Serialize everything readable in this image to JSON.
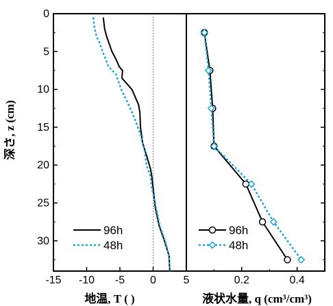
{
  "y_axis": {
    "label": "深さ, z (cm)",
    "ticks": [
      "0",
      "5",
      "10",
      "15",
      "20",
      "25",
      "30"
    ],
    "range": [
      0,
      34
    ]
  },
  "left_panel": {
    "xlabel": "地温, T (   )",
    "xticks": [
      "-15",
      "-10",
      "-5",
      "0",
      "5"
    ],
    "xlim": [
      -15,
      5
    ],
    "zero_line": true
  },
  "right_panel": {
    "xlabel": "液状水量, q (cm³/cm³)",
    "xticks": [
      "0.2",
      "0.4"
    ],
    "xlim": [
      0.0,
      0.5
    ]
  },
  "chart_data": [
    {
      "type": "line",
      "title": "",
      "xlabel": "地温, T (   )",
      "ylabel": "深さ, z (cm)",
      "xlim": [
        -15,
        5
      ],
      "ylim": [
        34,
        0
      ],
      "series": [
        {
          "name": "96h",
          "color": "#000000",
          "style": "solid",
          "x": [
            -7.5,
            -7.3,
            -7.0,
            -6.6,
            -6.2,
            -5.6,
            -5.1,
            -4.6,
            -4.7,
            -3.2,
            -2.2,
            -2.0,
            -1.9,
            -1.6,
            -0.9,
            -0.4,
            -0.2,
            0.0,
            0.3,
            0.9,
            1.7,
            2.4,
            2.5
          ],
          "y": [
            0.5,
            2.0,
            3.0,
            4.0,
            5.0,
            6.0,
            7.0,
            7.5,
            8.5,
            10.0,
            12.0,
            13.0,
            15.0,
            17.0,
            19.0,
            20.5,
            21.5,
            23.0,
            25.5,
            28.0,
            30.0,
            32.0,
            34.0
          ]
        },
        {
          "name": "48h",
          "color": "#1aa3d9",
          "style": "dotted",
          "x": [
            -9.0,
            -8.8,
            -8.5,
            -8.0,
            -7.6,
            -6.7,
            -5.6,
            -4.8,
            -3.7,
            -2.7,
            -1.9,
            -1.3,
            -1.0,
            -0.4,
            -0.2,
            0.3,
            1.0,
            1.8,
            2.4,
            2.5
          ],
          "y": [
            0.5,
            2.0,
            3.0,
            4.0,
            5.0,
            7.0,
            8.0,
            10.0,
            12.0,
            14.0,
            16.0,
            18.0,
            20.0,
            21.5,
            23.0,
            25.0,
            28.0,
            30.0,
            32.0,
            34.0
          ]
        }
      ],
      "legend": {
        "position": "bottom-left",
        "entries": [
          "96h",
          "48h"
        ]
      }
    },
    {
      "type": "line",
      "title": "",
      "xlabel": "液状水量, q (cm³/cm³)",
      "ylabel": "",
      "xlim": [
        0.0,
        0.5
      ],
      "ylim": [
        34,
        0
      ],
      "series": [
        {
          "name": "96h",
          "color": "#000000",
          "style": "solid",
          "marker": "circle",
          "x": [
            0.065,
            0.085,
            0.095,
            0.1,
            0.215,
            0.275,
            0.365
          ],
          "y": [
            2.5,
            7.5,
            12.5,
            17.5,
            22.5,
            27.5,
            32.5
          ]
        },
        {
          "name": "48h",
          "color": "#1aa3d9",
          "style": "dotted",
          "marker": "diamond",
          "x": [
            0.065,
            0.08,
            0.09,
            0.1,
            0.235,
            0.315,
            0.415
          ],
          "y": [
            2.5,
            7.5,
            12.5,
            17.5,
            22.5,
            27.5,
            32.5
          ]
        }
      ],
      "legend": {
        "position": "bottom-left",
        "entries": [
          "96h",
          "48h"
        ]
      }
    }
  ]
}
